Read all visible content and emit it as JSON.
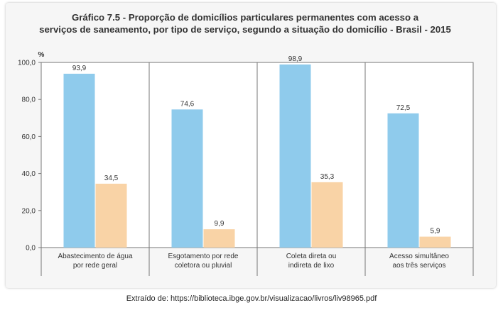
{
  "title_line1": "Gráfico 7.5 - Proporção de domicílios particulares permanentes com acesso a",
  "title_line2": "serviços de saneamento, por tipo de serviço, segundo a situação do domicílio - Brasil - 2015",
  "source": "Extraído de: https://biblioteca.ibge.gov.br/visualizacao/livros/liv98965.pdf",
  "chart_data": {
    "type": "bar",
    "title": "Gráfico 7.5 - Proporção de domicílios particulares permanentes com acesso a serviços de saneamento, por tipo de serviço, segundo a situação do domicílio - Brasil - 2015",
    "ylabel": "%",
    "ylim": [
      0,
      100
    ],
    "yticks": [
      "0,0",
      "20,0",
      "40,0",
      "60,0",
      "80,0",
      "100,0"
    ],
    "categories": [
      [
        "Abastecimento de água",
        "por rede geral"
      ],
      [
        "Esgotamento por rede",
        "coletora ou pluvial"
      ],
      [
        "Coleta direta ou",
        "indireta de lixo"
      ],
      [
        "Acesso simultâneo",
        "aos três serviços"
      ]
    ],
    "series": [
      {
        "values": [
          93.9,
          74.6,
          98.9,
          72.5
        ],
        "labels": [
          "93,9",
          "74,6",
          "98,9",
          "72,5"
        ],
        "color": "#8fcbec"
      },
      {
        "values": [
          34.5,
          9.9,
          35.3,
          5.9
        ],
        "labels": [
          "34,5",
          "9,9",
          "35,3",
          "5,9"
        ],
        "color": "#f9d3a6"
      }
    ],
    "grid": false
  }
}
